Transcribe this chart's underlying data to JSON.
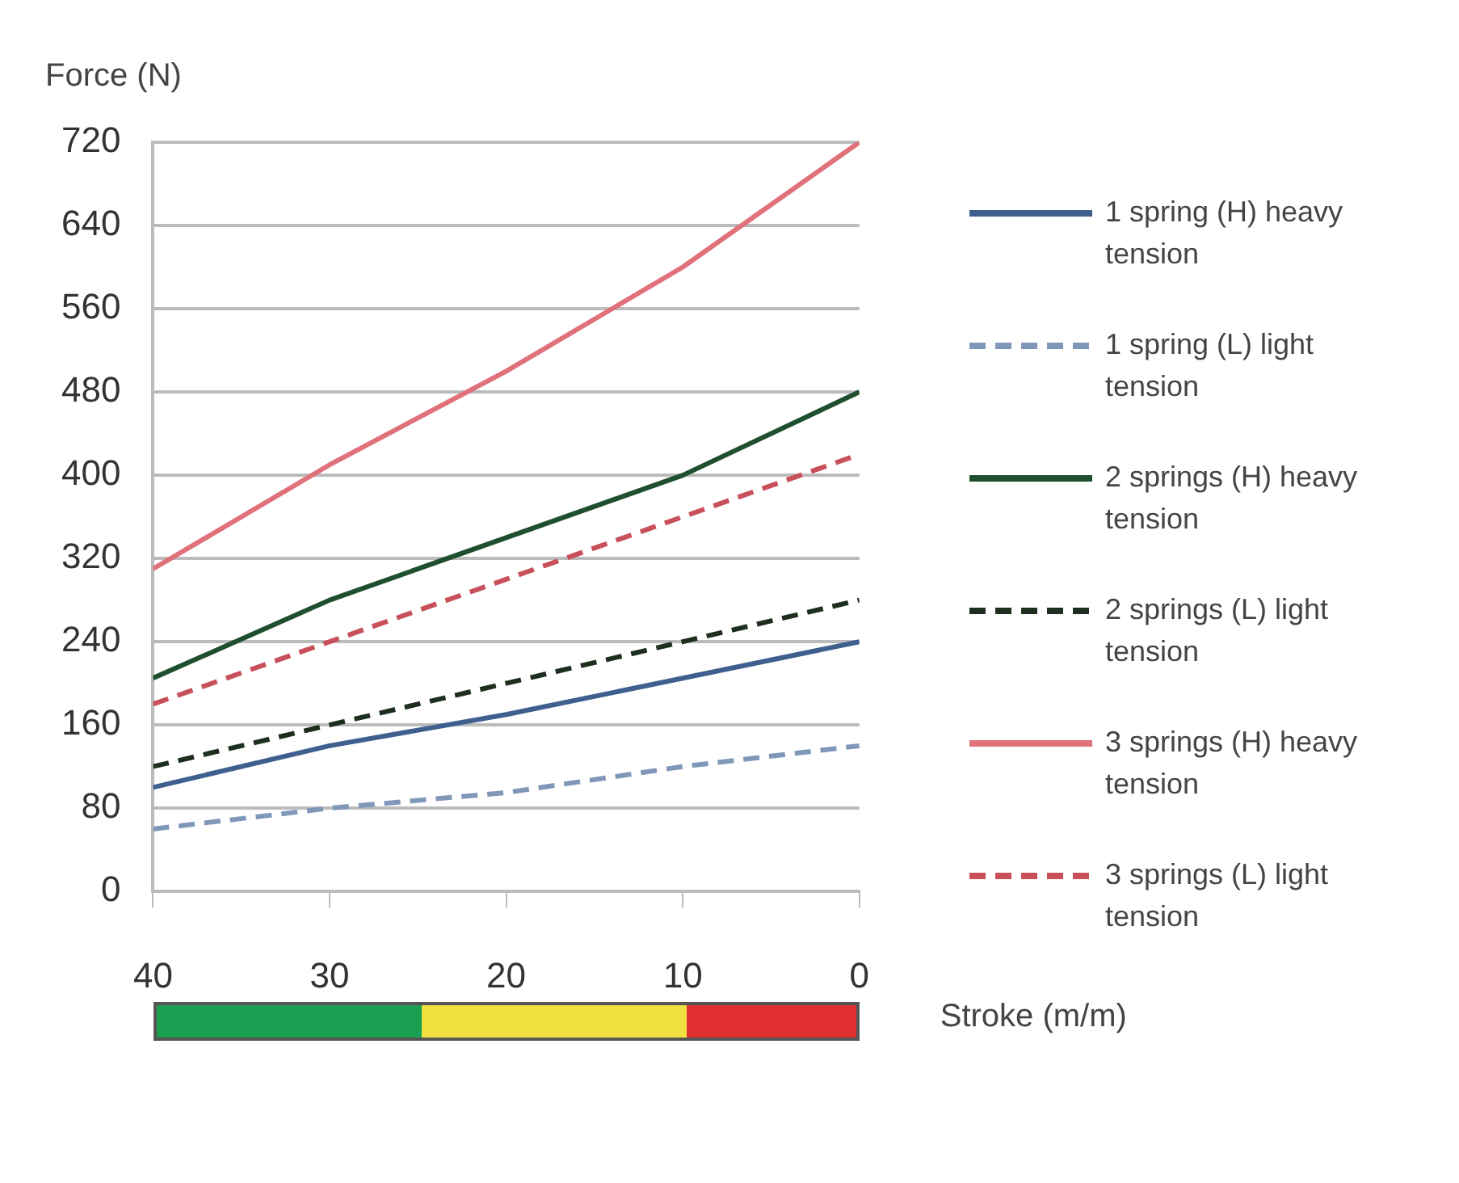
{
  "chart_data": {
    "type": "line",
    "ylabel": "Force (N)",
    "xlabel": "Stroke (m/m)",
    "x": [
      40,
      30,
      20,
      10,
      0
    ],
    "xlim": [
      40,
      0
    ],
    "xticks": [
      40,
      30,
      20,
      10,
      0
    ],
    "ylim": [
      0,
      720
    ],
    "yticks": [
      0,
      80,
      160,
      240,
      320,
      400,
      480,
      560,
      640,
      720
    ],
    "grid": "y",
    "legend": "right",
    "series": [
      {
        "name": "1 spring (H) heavy tension",
        "color": "#3f5f8f",
        "line_style": "solid",
        "values": [
          100,
          140,
          170,
          205,
          240
        ]
      },
      {
        "name": "1 spring (L) light tension",
        "color": "#7f97b8",
        "line_style": "dashed",
        "values": [
          60,
          80,
          95,
          120,
          140
        ]
      },
      {
        "name": "2 springs (H) heavy tension",
        "color": "#1f4f2f",
        "line_style": "solid",
        "values": [
          205,
          280,
          340,
          400,
          480
        ]
      },
      {
        "name": "2 springs (L) light tension",
        "color": "#1f2f1f",
        "line_style": "dashed",
        "values": [
          120,
          160,
          200,
          240,
          280
        ]
      },
      {
        "name": "3 springs (H) heavy tension",
        "color": "#e0707a",
        "line_style": "solid",
        "values": [
          310,
          410,
          500,
          600,
          720
        ]
      },
      {
        "name": "3 springs (L) light tension",
        "color": "#c8505a",
        "line_style": "dashed",
        "values": [
          180,
          240,
          300,
          360,
          420
        ]
      }
    ]
  }
}
